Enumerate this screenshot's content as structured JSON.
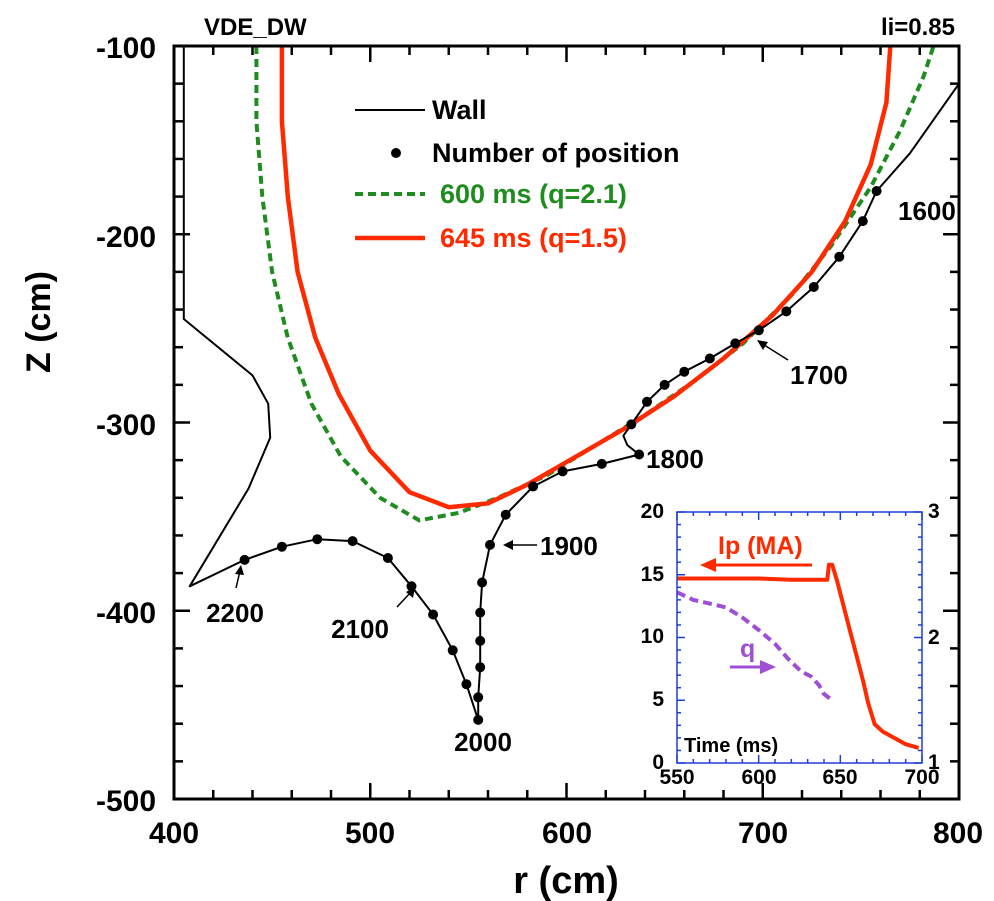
{
  "chart_data": [
    {
      "type": "line",
      "title_left": "VDE_DW",
      "title_right": "li=0.85",
      "xlabel": "r (cm)",
      "ylabel": "Z (cm)",
      "xlim": [
        400,
        800
      ],
      "ylim": [
        -500,
        -100
      ],
      "xticks": [
        "400",
        "500",
        "600",
        "700",
        "800"
      ],
      "yticks": [
        "-100",
        "-200",
        "-300",
        "-400",
        "-500"
      ],
      "legend": {
        "placement": "top-center",
        "wall": "Wall",
        "positions": "Number of position",
        "s600": "600 ms (q=2.1)",
        "s645": "645 ms (q=1.5)"
      },
      "colors": {
        "wall": "#000000",
        "s600": "#1e8c1e",
        "s645": "#ff2a00"
      },
      "wall": [
        [
          405,
          -100
        ],
        [
          405,
          -245
        ],
        [
          440,
          -275
        ],
        [
          448,
          -290
        ],
        [
          449,
          -308
        ],
        [
          438,
          -335
        ],
        [
          408,
          -387
        ],
        [
          436,
          -373
        ],
        [
          455,
          -366
        ],
        [
          473,
          -362
        ],
        [
          491,
          -363
        ],
        [
          509,
          -372
        ],
        [
          521,
          -387
        ],
        [
          532,
          -402
        ],
        [
          542,
          -421
        ],
        [
          549,
          -439
        ],
        [
          555,
          -458
        ],
        [
          555,
          -446
        ],
        [
          556,
          -430
        ],
        [
          556,
          -416
        ],
        [
          556,
          -401
        ],
        [
          557,
          -385
        ],
        [
          561,
          -365
        ],
        [
          569,
          -349
        ],
        [
          583,
          -334
        ],
        [
          598,
          -326
        ],
        [
          618,
          -322
        ],
        [
          637,
          -317
        ],
        [
          631,
          -312
        ],
        [
          629,
          -307
        ],
        [
          633,
          -301
        ],
        [
          641,
          -289
        ],
        [
          650,
          -280
        ],
        [
          660,
          -273
        ],
        [
          673,
          -266
        ],
        [
          686,
          -258
        ],
        [
          698,
          -251
        ],
        [
          712,
          -241
        ],
        [
          726,
          -228
        ],
        [
          739,
          -212
        ],
        [
          751,
          -193
        ],
        [
          758,
          -177
        ],
        [
          775,
          -157
        ],
        [
          800,
          -120
        ]
      ],
      "position_points": [
        [
          436,
          -373
        ],
        [
          455,
          -366
        ],
        [
          473,
          -362
        ],
        [
          491,
          -363
        ],
        [
          509,
          -372
        ],
        [
          521,
          -387
        ],
        [
          532,
          -402
        ],
        [
          542,
          -421
        ],
        [
          549,
          -439
        ],
        [
          555,
          -458
        ],
        [
          555,
          -446
        ],
        [
          556,
          -430
        ],
        [
          556,
          -416
        ],
        [
          556,
          -401
        ],
        [
          557,
          -385
        ],
        [
          561,
          -365
        ],
        [
          569,
          -349
        ],
        [
          583,
          -334
        ],
        [
          598,
          -326
        ],
        [
          618,
          -322
        ],
        [
          637,
          -317
        ],
        [
          633,
          -301
        ],
        [
          641,
          -289
        ],
        [
          650,
          -280
        ],
        [
          660,
          -273
        ],
        [
          673,
          -266
        ],
        [
          686,
          -258
        ],
        [
          698,
          -251
        ],
        [
          712,
          -241
        ],
        [
          726,
          -228
        ],
        [
          739,
          -212
        ],
        [
          751,
          -193
        ],
        [
          758,
          -177
        ]
      ],
      "series_600": [
        [
          442,
          -100
        ],
        [
          442,
          -140
        ],
        [
          445,
          -180
        ],
        [
          450,
          -220
        ],
        [
          458,
          -255
        ],
        [
          470,
          -290
        ],
        [
          485,
          -318
        ],
        [
          505,
          -340
        ],
        [
          525,
          -352
        ],
        [
          545,
          -348
        ],
        [
          565,
          -340
        ],
        [
          590,
          -328
        ],
        [
          615,
          -312
        ],
        [
          640,
          -296
        ],
        [
          665,
          -278
        ],
        [
          690,
          -258
        ],
        [
          715,
          -232
        ],
        [
          735,
          -206
        ],
        [
          755,
          -175
        ],
        [
          770,
          -145
        ],
        [
          782,
          -116
        ],
        [
          787,
          -100
        ]
      ],
      "series_645": [
        [
          455,
          -100
        ],
        [
          455,
          -140
        ],
        [
          458,
          -180
        ],
        [
          463,
          -220
        ],
        [
          472,
          -255
        ],
        [
          484,
          -285
        ],
        [
          500,
          -315
        ],
        [
          520,
          -337
        ],
        [
          540,
          -345
        ],
        [
          560,
          -343
        ],
        [
          580,
          -333
        ],
        [
          605,
          -318
        ],
        [
          630,
          -303
        ],
        [
          655,
          -286
        ],
        [
          680,
          -266
        ],
        [
          705,
          -243
        ],
        [
          725,
          -220
        ],
        [
          742,
          -193
        ],
        [
          755,
          -163
        ],
        [
          763,
          -130
        ],
        [
          765,
          -100
        ]
      ],
      "annotations": [
        "1600",
        "1700",
        "1800",
        "1900",
        "2000",
        "2100",
        "2200"
      ]
    },
    {
      "type": "line",
      "xlabel": "Time (ms)",
      "xlim": [
        550,
        700
      ],
      "ylim_left": [
        0,
        20
      ],
      "ylim_right": [
        1,
        3
      ],
      "xticks": [
        "550",
        "600",
        "650",
        "700"
      ],
      "yticks_left": [
        "0",
        "5",
        "10",
        "15",
        "20"
      ],
      "yticks_right": [
        "1",
        "2",
        "3"
      ],
      "ip_label": "Ip (MA)",
      "q_label": "q",
      "colors": {
        "ip": "#ff2a00",
        "q": "#9f4fd6",
        "frame": "#1f3fd6"
      },
      "ip": [
        [
          550,
          14.7
        ],
        [
          600,
          14.7
        ],
        [
          620,
          14.6
        ],
        [
          642,
          14.6
        ],
        [
          643,
          15.8
        ],
        [
          645,
          15.8
        ],
        [
          648,
          14.5
        ],
        [
          652,
          12.5
        ],
        [
          656,
          10.5
        ],
        [
          660,
          8.5
        ],
        [
          664,
          6.5
        ],
        [
          667,
          4.8
        ],
        [
          671,
          3.1
        ],
        [
          676,
          2.5
        ],
        [
          683,
          2.0
        ],
        [
          690,
          1.5
        ],
        [
          698,
          1.2
        ]
      ],
      "q": [
        [
          550,
          2.36
        ],
        [
          560,
          2.3
        ],
        [
          570,
          2.27
        ],
        [
          580,
          2.24
        ],
        [
          590,
          2.16
        ],
        [
          600,
          2.06
        ],
        [
          610,
          1.95
        ],
        [
          618,
          1.83
        ],
        [
          626,
          1.73
        ],
        [
          632,
          1.69
        ],
        [
          637,
          1.62
        ],
        [
          640,
          1.55
        ],
        [
          645,
          1.5
        ]
      ]
    }
  ]
}
